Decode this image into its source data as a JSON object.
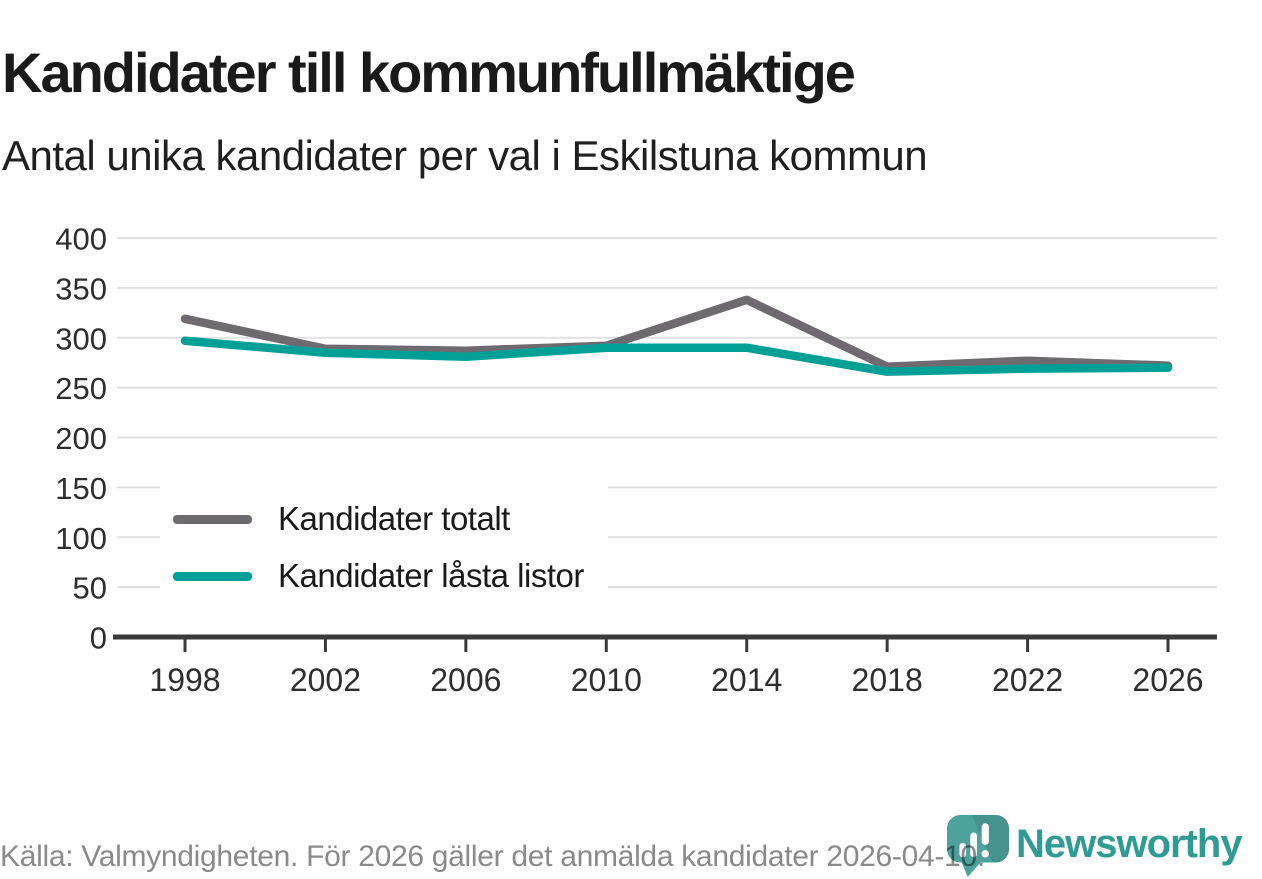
{
  "chart_data": {
    "type": "line",
    "title": "Kandidater till kommunfullmäktige",
    "subtitle": "Antal unika kandidater per val i Eskilstuna kommun",
    "x": [
      1998,
      2002,
      2006,
      2010,
      2014,
      2018,
      2022,
      2026
    ],
    "series": [
      {
        "name": "Kandidater totalt",
        "color": "#6f6a6f",
        "values": [
          319,
          289,
          287,
          292,
          338,
          271,
          277,
          272
        ]
      },
      {
        "name": "Kandidater låsta listor",
        "color": "#00a097",
        "values": [
          297,
          285,
          281,
          290,
          290,
          266,
          269,
          270
        ]
      }
    ],
    "ylim": [
      0,
      400
    ],
    "yticks": [
      0,
      50,
      100,
      150,
      200,
      250,
      300,
      350,
      400
    ],
    "grid": true,
    "legend_position": "inside-bottom-left",
    "colors": {
      "grid": "#e1e1e1",
      "axis": "#3a3a3a",
      "tick_label": "#2e2e2e"
    }
  },
  "footer": {
    "source": "Källa: Valmyndigheten. För 2026 gäller det anmälda kandidater 2026-04-10.",
    "brand": "Newsworthy"
  }
}
